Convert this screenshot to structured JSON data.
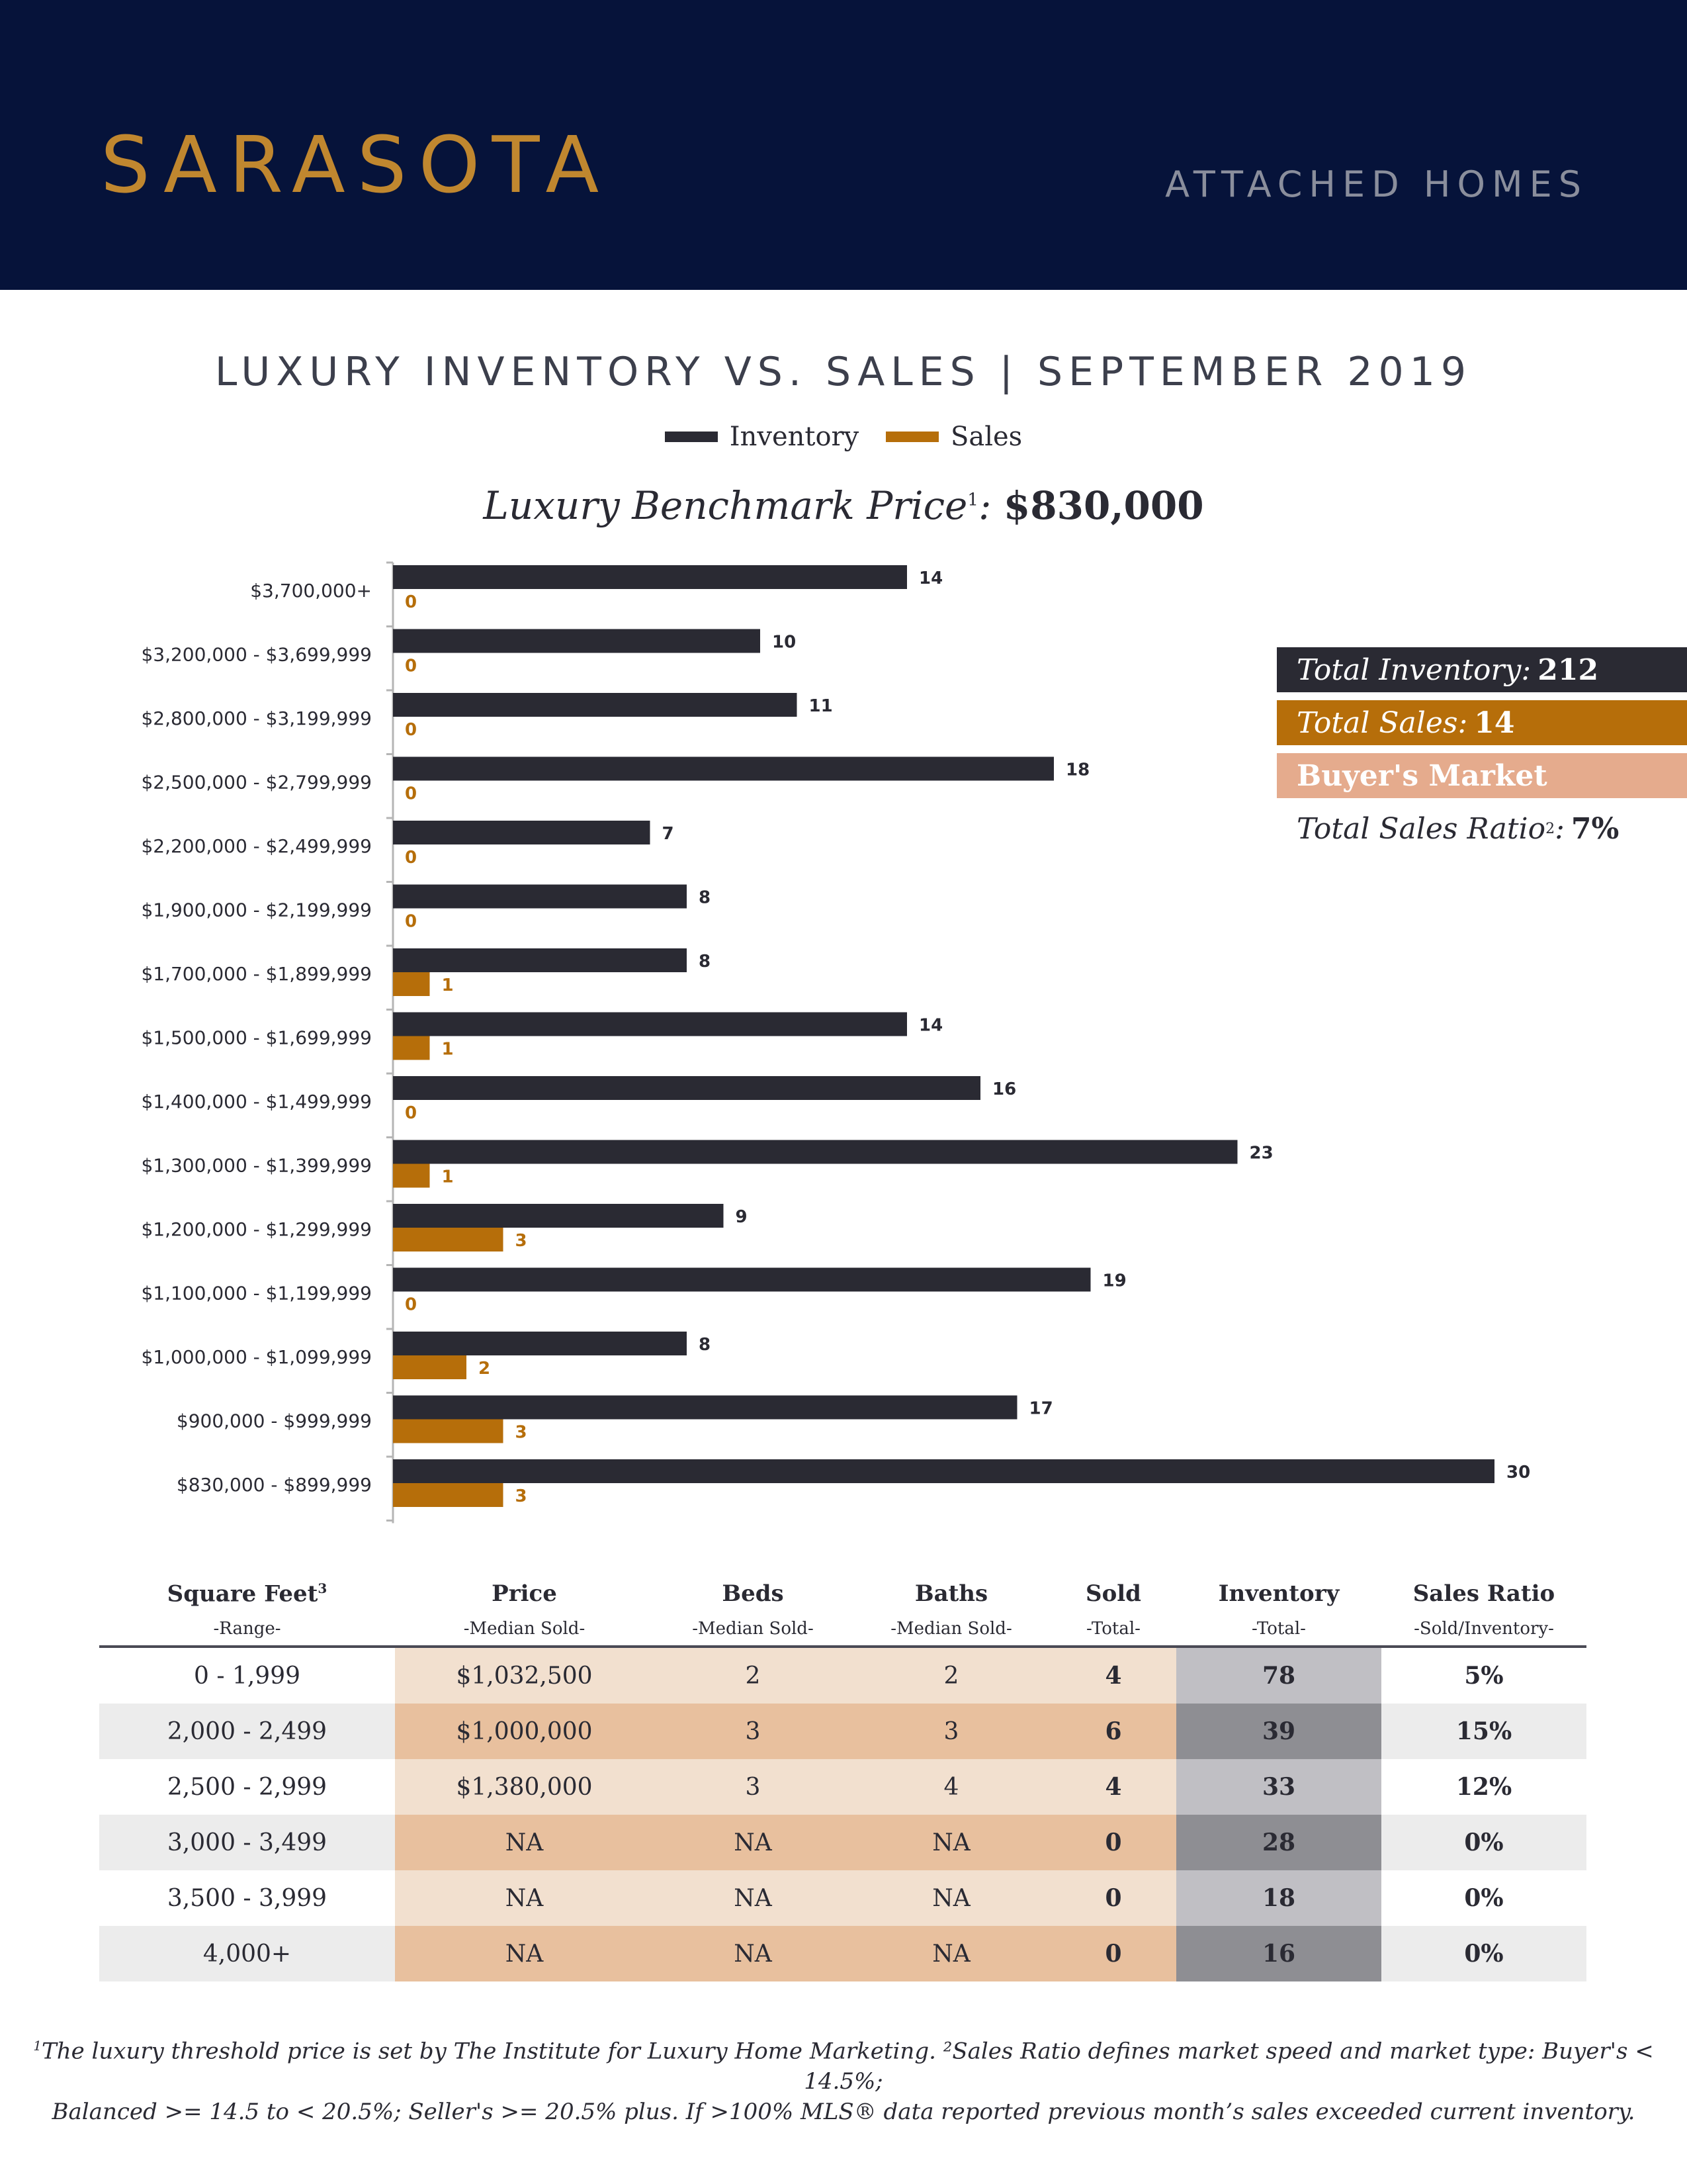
{
  "header": {
    "city": "SARASOTA",
    "category": "ATTACHED HOMES"
  },
  "title": "LUXURY INVENTORY VS. SALES | SEPTEMBER 2019",
  "legend": {
    "inventory": "Inventory",
    "sales": "Sales"
  },
  "benchmark": {
    "label": "Luxury Benchmark Price",
    "sup": "1",
    "value": "$830,000"
  },
  "colors": {
    "inventory": "#2a2a33",
    "sales": "#b66e0a",
    "market": "#e5ab8d",
    "header": "#06133a",
    "gold": "#c0872f"
  },
  "chart_data": {
    "type": "bar",
    "orientation": "horizontal",
    "categories": [
      "$3,700,000+",
      "$3,200,000 - $3,699,999",
      "$2,800,000 - $3,199,999",
      "$2,500,000 - $2,799,999",
      "$2,200,000 - $2,499,999",
      "$1,900,000 - $2,199,999",
      "$1,700,000 - $1,899,999",
      "$1,500,000 - $1,699,999",
      "$1,400,000 - $1,499,999",
      "$1,300,000 - $1,399,999",
      "$1,200,000 - $1,299,999",
      "$1,100,000 - $1,199,999",
      "$1,000,000 - $1,099,999",
      "$900,000 - $999,999",
      "$830,000 - $899,999"
    ],
    "series": [
      {
        "name": "Inventory",
        "values": [
          14,
          10,
          11,
          18,
          7,
          8,
          8,
          14,
          16,
          23,
          9,
          19,
          8,
          17,
          30
        ]
      },
      {
        "name": "Sales",
        "values": [
          0,
          0,
          0,
          0,
          0,
          0,
          1,
          1,
          0,
          1,
          3,
          0,
          2,
          3,
          3
        ]
      }
    ],
    "xlim": [
      0,
      30
    ]
  },
  "stats": {
    "inventory_label": "Total Inventory:",
    "inventory_value": "212",
    "sales_label": "Total Sales:",
    "sales_value": "14",
    "market": "Buyer's Market",
    "ratio_label": "Total Sales Ratio",
    "ratio_sup": "2",
    "ratio_value": "7%"
  },
  "table": {
    "headers": [
      "Square Feet",
      "Price",
      "Beds",
      "Baths",
      "Sold",
      "Inventory",
      "Sales Ratio"
    ],
    "header_sup": "3",
    "subheaders": [
      "-Range-",
      "-Median Sold-",
      "-Median Sold-",
      "-Median Sold-",
      "-Total-",
      "-Total-",
      "-Sold/Inventory-"
    ],
    "rows": [
      [
        "0 - 1,999",
        "$1,032,500",
        "2",
        "2",
        "4",
        "78",
        "5%"
      ],
      [
        "2,000 - 2,499",
        "$1,000,000",
        "3",
        "3",
        "6",
        "39",
        "15%"
      ],
      [
        "2,500 - 2,999",
        "$1,380,000",
        "3",
        "4",
        "4",
        "33",
        "12%"
      ],
      [
        "3,000 - 3,499",
        "NA",
        "NA",
        "NA",
        "0",
        "28",
        "0%"
      ],
      [
        "3,500 - 3,999",
        "NA",
        "NA",
        "NA",
        "0",
        "18",
        "0%"
      ],
      [
        "4,000+",
        "NA",
        "NA",
        "NA",
        "0",
        "16",
        "0%"
      ]
    ]
  },
  "footnote": {
    "line1": "The luxury threshold price is set by The Institute for Luxury Home Marketing. ²Sales Ratio defines market speed and market type: Buyer's < 14.5%;",
    "line1_sup": "1",
    "line2": "Balanced >= 14.5 to < 20.5%; Seller's >= 20.5% plus. If >100% MLS® data reported previous month’s sales exceeded current inventory."
  }
}
